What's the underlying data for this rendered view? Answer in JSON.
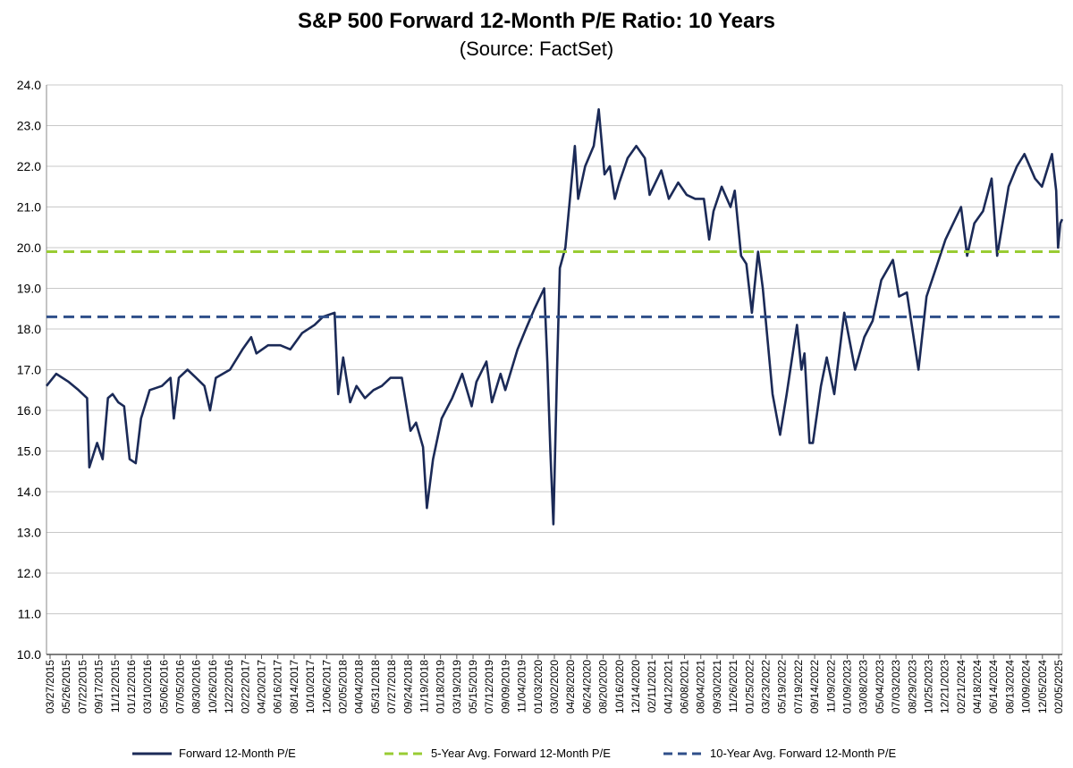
{
  "chart_data": {
    "type": "line",
    "title": "S&P 500 Forward 12-Month P/E Ratio: 10 Years",
    "subtitle": "(Source: FactSet)",
    "ylim": [
      10,
      24
    ],
    "yticks": [
      "10.0",
      "11.0",
      "12.0",
      "13.0",
      "14.0",
      "15.0",
      "16.0",
      "17.0",
      "18.0",
      "19.0",
      "20.0",
      "21.0",
      "22.0",
      "23.0",
      "24.0"
    ],
    "xlim": [
      "2015-03-27",
      "2025-03-27"
    ],
    "xticks": [
      "03/27/2015",
      "05/26/2015",
      "07/22/2015",
      "09/17/2015",
      "11/12/2015",
      "01/12/2016",
      "03/10/2016",
      "05/06/2016",
      "07/05/2016",
      "08/30/2016",
      "10/26/2016",
      "12/22/2016",
      "02/22/2017",
      "04/20/2017",
      "06/16/2017",
      "08/14/2017",
      "10/10/2017",
      "12/06/2017",
      "02/05/2018",
      "04/04/2018",
      "05/31/2018",
      "07/27/2018",
      "09/24/2018",
      "11/19/2018",
      "01/18/2019",
      "03/19/2019",
      "05/15/2019",
      "07/12/2019",
      "09/09/2019",
      "11/04/2019",
      "01/03/2020",
      "03/02/2020",
      "04/28/2020",
      "06/24/2020",
      "08/20/2020",
      "10/16/2020",
      "12/14/2020",
      "02/11/2021",
      "04/12/2021",
      "06/08/2021",
      "08/04/2021",
      "09/30/2021",
      "11/26/2021",
      "01/25/2022",
      "03/23/2022",
      "05/19/2022",
      "07/19/2022",
      "09/14/2022",
      "11/09/2022",
      "01/09/2023",
      "03/08/2023",
      "05/04/2023",
      "07/03/2023",
      "08/29/2023",
      "10/25/2023",
      "12/21/2023",
      "02/21/2024",
      "04/18/2024",
      "06/14/2024",
      "08/13/2024",
      "10/09/2024",
      "12/05/2024",
      "02/05/2025"
    ],
    "grid": true,
    "legend_position": "bottom",
    "series": [
      {
        "name": "Forward 12-Month P/E",
        "color": "#1b2a57",
        "style": "solid",
        "points": [
          [
            "2015-03-27",
            16.6
          ],
          [
            "2015-05-01",
            16.9
          ],
          [
            "2015-06-15",
            16.7
          ],
          [
            "2015-07-20",
            16.5
          ],
          [
            "2015-08-20",
            16.3
          ],
          [
            "2015-08-28",
            14.6
          ],
          [
            "2015-09-25",
            15.2
          ],
          [
            "2015-10-15",
            14.8
          ],
          [
            "2015-11-03",
            16.3
          ],
          [
            "2015-11-20",
            16.4
          ],
          [
            "2015-12-10",
            16.2
          ],
          [
            "2015-12-31",
            16.1
          ],
          [
            "2016-01-20",
            14.8
          ],
          [
            "2016-02-11",
            14.7
          ],
          [
            "2016-03-01",
            15.8
          ],
          [
            "2016-04-01",
            16.5
          ],
          [
            "2016-05-15",
            16.6
          ],
          [
            "2016-06-15",
            16.8
          ],
          [
            "2016-06-27",
            15.8
          ],
          [
            "2016-07-15",
            16.8
          ],
          [
            "2016-08-15",
            17.0
          ],
          [
            "2016-09-15",
            16.8
          ],
          [
            "2016-10-15",
            16.6
          ],
          [
            "2016-11-04",
            16.0
          ],
          [
            "2016-11-25",
            16.8
          ],
          [
            "2017-01-15",
            17.0
          ],
          [
            "2017-03-01",
            17.5
          ],
          [
            "2017-04-01",
            17.8
          ],
          [
            "2017-04-20",
            17.4
          ],
          [
            "2017-06-01",
            17.6
          ],
          [
            "2017-07-15",
            17.6
          ],
          [
            "2017-08-20",
            17.5
          ],
          [
            "2017-10-01",
            17.9
          ],
          [
            "2017-11-15",
            18.1
          ],
          [
            "2017-12-15",
            18.3
          ],
          [
            "2018-01-26",
            18.4
          ],
          [
            "2018-02-08",
            16.4
          ],
          [
            "2018-02-26",
            17.3
          ],
          [
            "2018-03-23",
            16.2
          ],
          [
            "2018-04-15",
            16.6
          ],
          [
            "2018-05-15",
            16.3
          ],
          [
            "2018-06-15",
            16.5
          ],
          [
            "2018-07-15",
            16.6
          ],
          [
            "2018-08-15",
            16.8
          ],
          [
            "2018-09-25",
            16.8
          ],
          [
            "2018-10-26",
            15.5
          ],
          [
            "2018-11-15",
            15.7
          ],
          [
            "2018-12-10",
            15.1
          ],
          [
            "2018-12-24",
            13.6
          ],
          [
            "2019-01-15",
            14.8
          ],
          [
            "2019-02-15",
            15.8
          ],
          [
            "2019-03-25",
            16.3
          ],
          [
            "2019-04-30",
            16.9
          ],
          [
            "2019-06-03",
            16.1
          ],
          [
            "2019-06-20",
            16.7
          ],
          [
            "2019-07-26",
            17.2
          ],
          [
            "2019-08-15",
            16.2
          ],
          [
            "2019-09-15",
            16.9
          ],
          [
            "2019-10-02",
            16.5
          ],
          [
            "2019-11-15",
            17.5
          ],
          [
            "2019-12-15",
            18.0
          ],
          [
            "2020-01-15",
            18.5
          ],
          [
            "2020-02-19",
            19.0
          ],
          [
            "2020-03-01",
            17.2
          ],
          [
            "2020-03-12",
            15.0
          ],
          [
            "2020-03-23",
            13.2
          ],
          [
            "2020-04-05",
            17.0
          ],
          [
            "2020-04-15",
            19.5
          ],
          [
            "2020-05-05",
            20.0
          ],
          [
            "2020-06-08",
            22.5
          ],
          [
            "2020-06-20",
            21.2
          ],
          [
            "2020-07-15",
            22.0
          ],
          [
            "2020-08-15",
            22.5
          ],
          [
            "2020-09-02",
            23.4
          ],
          [
            "2020-09-23",
            21.8
          ],
          [
            "2020-10-12",
            22.0
          ],
          [
            "2020-10-30",
            21.2
          ],
          [
            "2020-11-15",
            21.6
          ],
          [
            "2020-12-15",
            22.2
          ],
          [
            "2021-01-15",
            22.5
          ],
          [
            "2021-02-15",
            22.2
          ],
          [
            "2021-03-04",
            21.3
          ],
          [
            "2021-04-15",
            21.9
          ],
          [
            "2021-05-12",
            21.2
          ],
          [
            "2021-06-15",
            21.6
          ],
          [
            "2021-07-15",
            21.3
          ],
          [
            "2021-08-15",
            21.2
          ],
          [
            "2021-09-15",
            21.2
          ],
          [
            "2021-10-04",
            20.2
          ],
          [
            "2021-10-20",
            20.9
          ],
          [
            "2021-11-18",
            21.5
          ],
          [
            "2021-12-20",
            21.0
          ],
          [
            "2022-01-04",
            21.4
          ],
          [
            "2022-01-27",
            19.8
          ],
          [
            "2022-02-15",
            19.6
          ],
          [
            "2022-03-07",
            18.4
          ],
          [
            "2022-03-29",
            19.9
          ],
          [
            "2022-04-15",
            19.0
          ],
          [
            "2022-05-12",
            17.0
          ],
          [
            "2022-05-20",
            16.4
          ],
          [
            "2022-06-16",
            15.4
          ],
          [
            "2022-07-10",
            16.4
          ],
          [
            "2022-08-16",
            18.1
          ],
          [
            "2022-09-01",
            17.0
          ],
          [
            "2022-09-12",
            17.4
          ],
          [
            "2022-09-30",
            15.2
          ],
          [
            "2022-10-12",
            15.2
          ],
          [
            "2022-11-10",
            16.6
          ],
          [
            "2022-12-01",
            17.3
          ],
          [
            "2022-12-28",
            16.4
          ],
          [
            "2023-02-02",
            18.4
          ],
          [
            "2023-03-13",
            17.0
          ],
          [
            "2023-04-15",
            17.8
          ],
          [
            "2023-05-15",
            18.2
          ],
          [
            "2023-06-15",
            19.2
          ],
          [
            "2023-07-27",
            19.7
          ],
          [
            "2023-08-18",
            18.8
          ],
          [
            "2023-09-15",
            18.9
          ],
          [
            "2023-10-27",
            17.0
          ],
          [
            "2023-11-25",
            18.8
          ],
          [
            "2023-12-29",
            19.5
          ],
          [
            "2024-02-01",
            20.2
          ],
          [
            "2024-03-28",
            21.0
          ],
          [
            "2024-04-19",
            19.8
          ],
          [
            "2024-05-15",
            20.6
          ],
          [
            "2024-06-15",
            20.9
          ],
          [
            "2024-07-16",
            21.7
          ],
          [
            "2024-08-05",
            19.8
          ],
          [
            "2024-09-15",
            21.5
          ],
          [
            "2024-10-15",
            22.0
          ],
          [
            "2024-11-11",
            22.3
          ],
          [
            "2024-12-19",
            21.7
          ],
          [
            "2025-01-13",
            21.5
          ],
          [
            "2025-02-18",
            22.3
          ],
          [
            "2025-03-05",
            21.4
          ],
          [
            "2025-03-12",
            20.0
          ],
          [
            "2025-03-20",
            20.6
          ],
          [
            "2025-03-27",
            20.7
          ]
        ]
      },
      {
        "name": "5-Year Avg. Forward 12-Month P/E",
        "color": "#99cc33",
        "style": "dashed",
        "value": 19.9
      },
      {
        "name": "10-Year Avg. Forward 12-Month P/E",
        "color": "#2f4f8a",
        "style": "dashed",
        "value": 18.3
      }
    ]
  }
}
